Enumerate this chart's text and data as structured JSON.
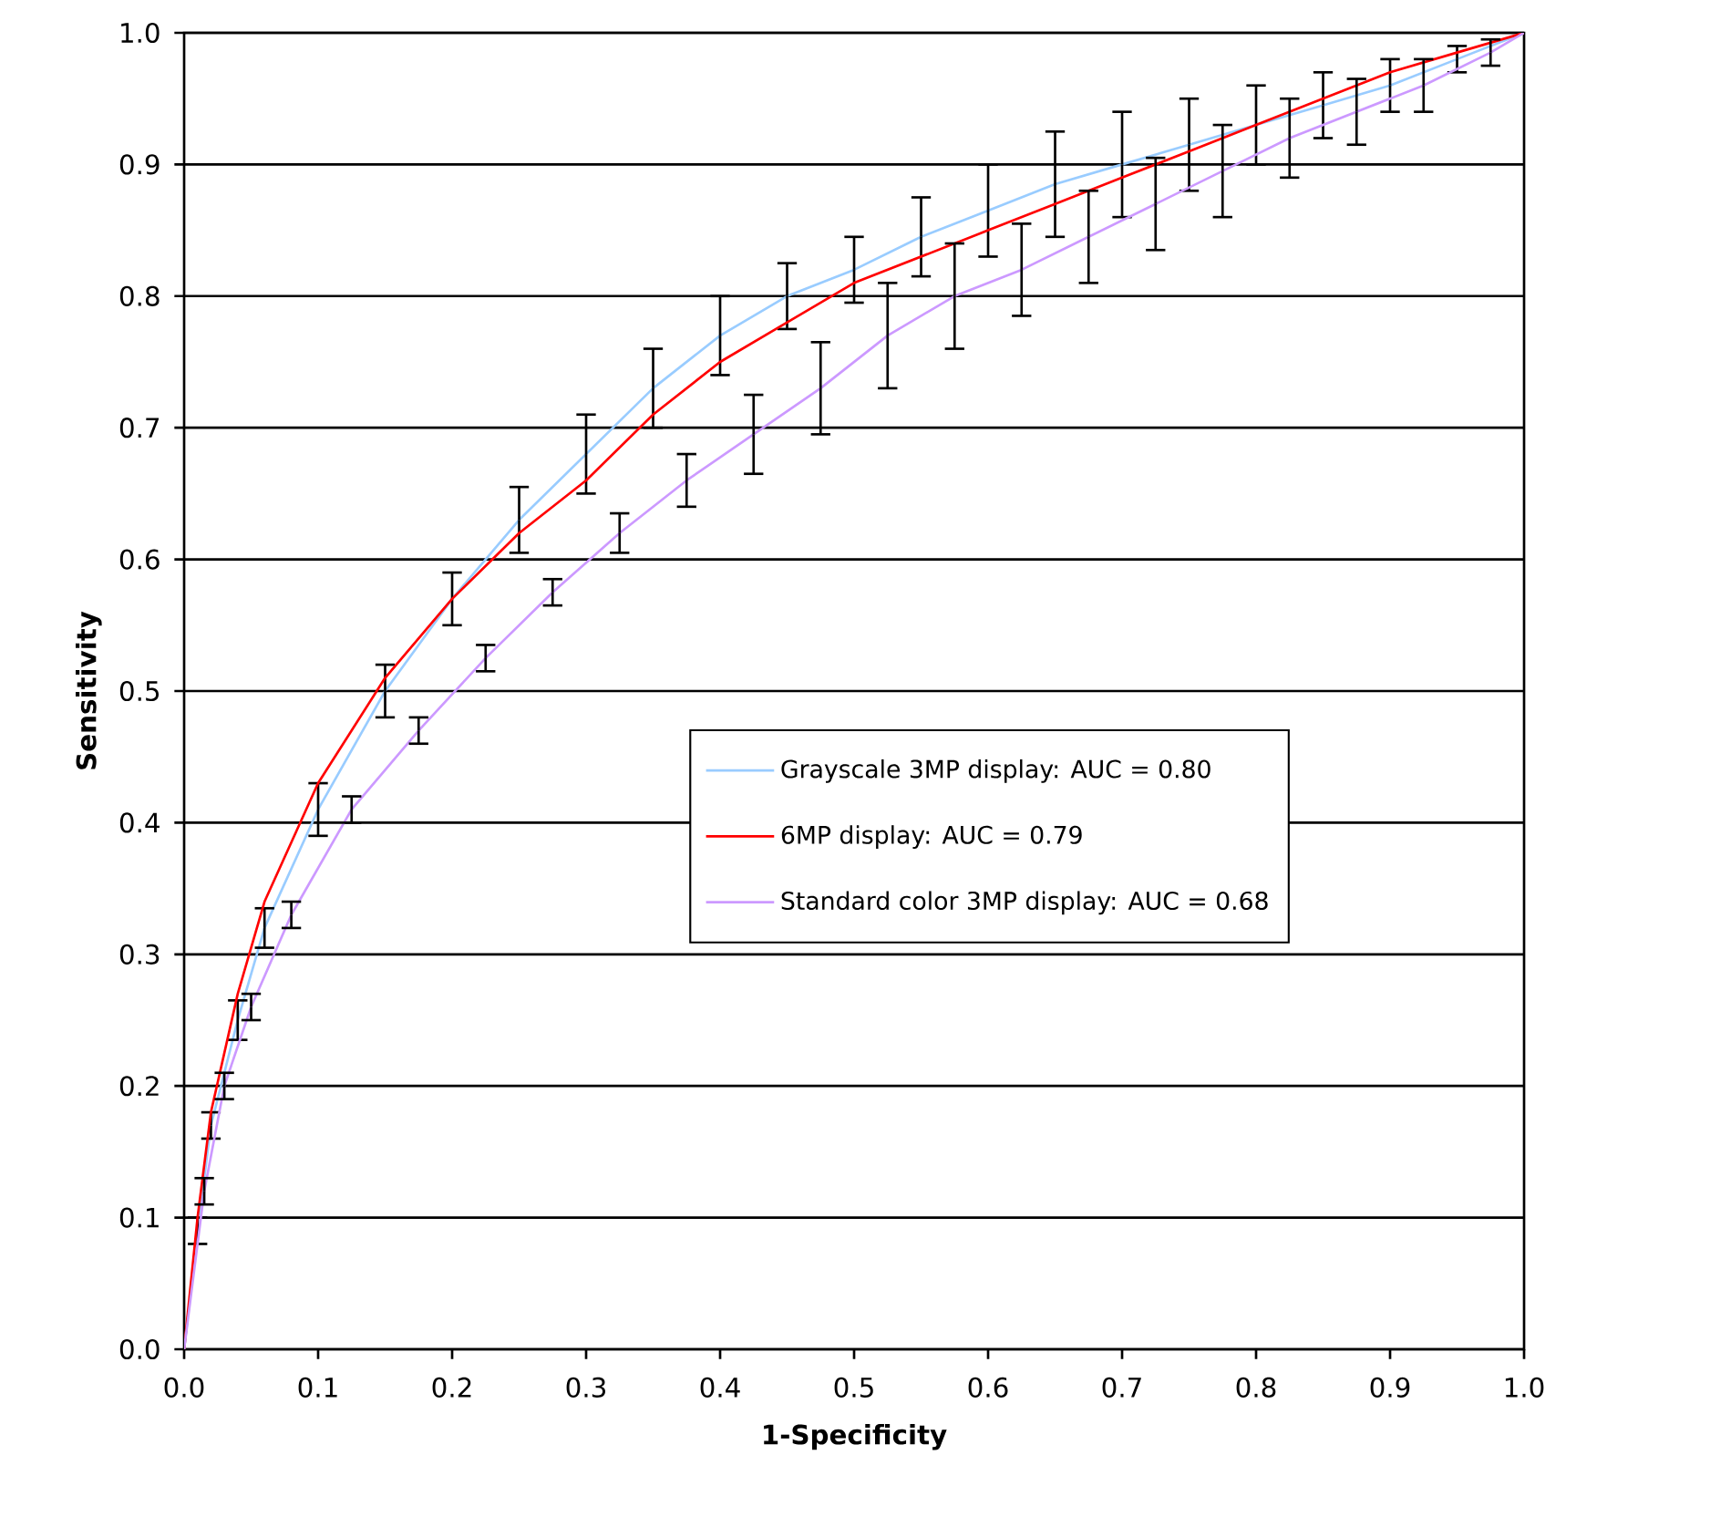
{
  "chart_data": {
    "type": "line",
    "xlabel": "1-Specificity",
    "ylabel": "Sensitivity",
    "x": [
      0,
      0.01,
      0.02,
      0.04,
      0.06,
      0.1,
      0.15,
      0.2,
      0.25,
      0.3,
      0.35,
      0.4,
      0.45,
      0.5,
      0.55,
      0.6,
      0.65,
      0.7,
      0.75,
      0.8,
      0.85,
      0.9,
      0.95,
      1
    ],
    "series": [
      {
        "name": "Grayscale 3MP display: AUC = 0.80",
        "color": "#99ccff",
        "values": [
          0,
          0.09,
          0.17,
          0.25,
          0.32,
          0.41,
          0.5,
          0.57,
          0.63,
          0.68,
          0.73,
          0.77,
          0.8,
          0.82,
          0.845,
          0.865,
          0.885,
          0.9,
          0.915,
          0.93,
          0.945,
          0.96,
          0.98,
          1
        ],
        "errors": [
          null,
          0.01,
          0.01,
          0.015,
          0.015,
          0.02,
          0.02,
          0.02,
          0.025,
          0.03,
          0.03,
          0.03,
          0.025,
          0.025,
          0.03,
          0.035,
          0.04,
          0.04,
          0.035,
          0.03,
          0.025,
          0.02,
          0.01,
          null
        ]
      },
      {
        "name": "6MP display: AUC = 0.79",
        "color": "#ff0000",
        "values": [
          0,
          0.1,
          0.18,
          0.27,
          0.34,
          0.43,
          0.51,
          0.57,
          0.62,
          0.66,
          0.71,
          0.75,
          0.78,
          0.81,
          0.83,
          0.85,
          0.87,
          0.89,
          0.91,
          0.93,
          0.95,
          0.97,
          0.985,
          1
        ]
      },
      {
        "name": "Standard color 3MP display: AUC = 0.68",
        "color": "#cc99ff",
        "x": [
          0,
          0.015,
          0.03,
          0.05,
          0.08,
          0.125,
          0.175,
          0.225,
          0.275,
          0.325,
          0.375,
          0.425,
          0.475,
          0.525,
          0.575,
          0.625,
          0.675,
          0.725,
          0.775,
          0.825,
          0.875,
          0.925,
          0.975,
          1
        ],
        "values": [
          0,
          0.12,
          0.2,
          0.26,
          0.33,
          0.41,
          0.47,
          0.525,
          0.575,
          0.62,
          0.66,
          0.695,
          0.73,
          0.77,
          0.8,
          0.82,
          0.845,
          0.87,
          0.895,
          0.92,
          0.94,
          0.96,
          0.985,
          1
        ],
        "errors": [
          null,
          0.01,
          0.01,
          0.01,
          0.01,
          0.01,
          0.01,
          0.01,
          0.01,
          0.015,
          0.02,
          0.03,
          0.035,
          0.04,
          0.04,
          0.035,
          0.035,
          0.035,
          0.035,
          0.03,
          0.025,
          0.02,
          0.01,
          null
        ]
      }
    ],
    "xlim": [
      0,
      1
    ],
    "ylim": [
      0,
      1
    ],
    "xticks": [
      {
        "value": 0,
        "label": "0.0"
      },
      0.1,
      0.2,
      0.3,
      0.4,
      0.5,
      0.6,
      0.7,
      0.8,
      0.9,
      {
        "value": 1,
        "label": "1.0"
      }
    ],
    "yticks": [
      {
        "value": 0,
        "label": "0.0"
      },
      0.1,
      0.2,
      0.3,
      0.4,
      0.5,
      0.6,
      0.7,
      0.8,
      0.9,
      {
        "value": 1,
        "label": "1.0"
      }
    ],
    "grid": "y",
    "legend": "right",
    "marker": "none",
    "line_style": "solid"
  }
}
